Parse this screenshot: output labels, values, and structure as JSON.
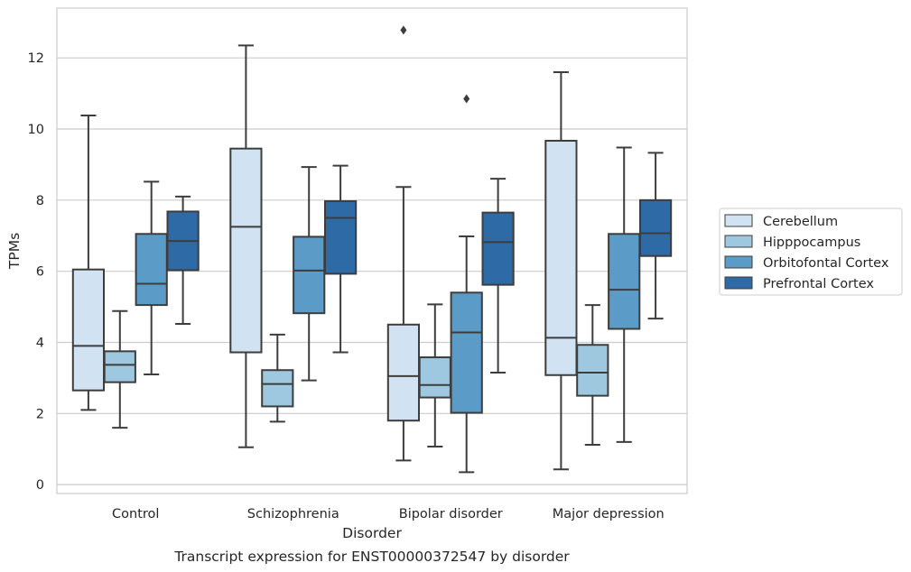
{
  "chart_data": {
    "type": "box",
    "caption": "Transcript expression for ENST00000372547 by disorder",
    "xlabel": "Disorder",
    "ylabel": "TPMs",
    "ylim": [
      -0.25,
      13.4
    ],
    "yticks": [
      0,
      2,
      4,
      6,
      8,
      10,
      12
    ],
    "grid": "horizontal",
    "legend_position": "right-center",
    "categories": [
      "Control",
      "Schizophrenia",
      "Bipolar disorder",
      "Major depression"
    ],
    "series": [
      {
        "name": "Cerebellum",
        "color": "#d1e2f2",
        "boxes": [
          {
            "whislo": 2.1,
            "q1": 2.65,
            "med": 3.9,
            "q3": 6.05,
            "whishi": 10.38,
            "fliers": []
          },
          {
            "whislo": 1.05,
            "q1": 3.72,
            "med": 7.25,
            "q3": 9.45,
            "whishi": 12.35,
            "fliers": []
          },
          {
            "whislo": 0.68,
            "q1": 1.8,
            "med": 3.05,
            "q3": 4.5,
            "whishi": 8.37,
            "fliers": [
              12.78
            ]
          },
          {
            "whislo": 0.43,
            "q1": 3.08,
            "med": 4.13,
            "q3": 9.67,
            "whishi": 11.6,
            "fliers": []
          }
        ]
      },
      {
        "name": "Hipppocampus",
        "color": "#9dc8df",
        "boxes": [
          {
            "whislo": 1.6,
            "q1": 2.88,
            "med": 3.37,
            "q3": 3.75,
            "whishi": 4.88,
            "fliers": []
          },
          {
            "whislo": 1.77,
            "q1": 2.2,
            "med": 2.83,
            "q3": 3.22,
            "whishi": 4.22,
            "fliers": []
          },
          {
            "whislo": 1.07,
            "q1": 2.45,
            "med": 2.8,
            "q3": 3.58,
            "whishi": 5.07,
            "fliers": []
          },
          {
            "whislo": 1.12,
            "q1": 2.5,
            "med": 3.15,
            "q3": 3.93,
            "whishi": 5.05,
            "fliers": []
          }
        ]
      },
      {
        "name": "Orbitofontal Cortex",
        "color": "#5b9bc8",
        "boxes": [
          {
            "whislo": 3.1,
            "q1": 5.05,
            "med": 5.65,
            "q3": 7.05,
            "whishi": 8.52,
            "fliers": []
          },
          {
            "whislo": 2.93,
            "q1": 4.82,
            "med": 6.02,
            "q3": 6.97,
            "whishi": 8.93,
            "fliers": []
          },
          {
            "whislo": 0.35,
            "q1": 2.02,
            "med": 4.28,
            "q3": 5.4,
            "whishi": 6.98,
            "fliers": [
              10.85
            ]
          },
          {
            "whislo": 1.2,
            "q1": 4.38,
            "med": 5.48,
            "q3": 7.05,
            "whishi": 9.48,
            "fliers": []
          }
        ]
      },
      {
        "name": "Prefrontal Cortex",
        "color": "#2e6aa6",
        "boxes": [
          {
            "whislo": 4.52,
            "q1": 6.03,
            "med": 6.85,
            "q3": 7.68,
            "whishi": 8.1,
            "fliers": []
          },
          {
            "whislo": 3.72,
            "q1": 5.93,
            "med": 7.5,
            "q3": 7.97,
            "whishi": 8.97,
            "fliers": []
          },
          {
            "whislo": 3.15,
            "q1": 5.62,
            "med": 6.82,
            "q3": 7.65,
            "whishi": 8.6,
            "fliers": []
          },
          {
            "whislo": 4.67,
            "q1": 6.43,
            "med": 7.07,
            "q3": 8.0,
            "whishi": 9.33,
            "fliers": []
          }
        ]
      }
    ]
  }
}
